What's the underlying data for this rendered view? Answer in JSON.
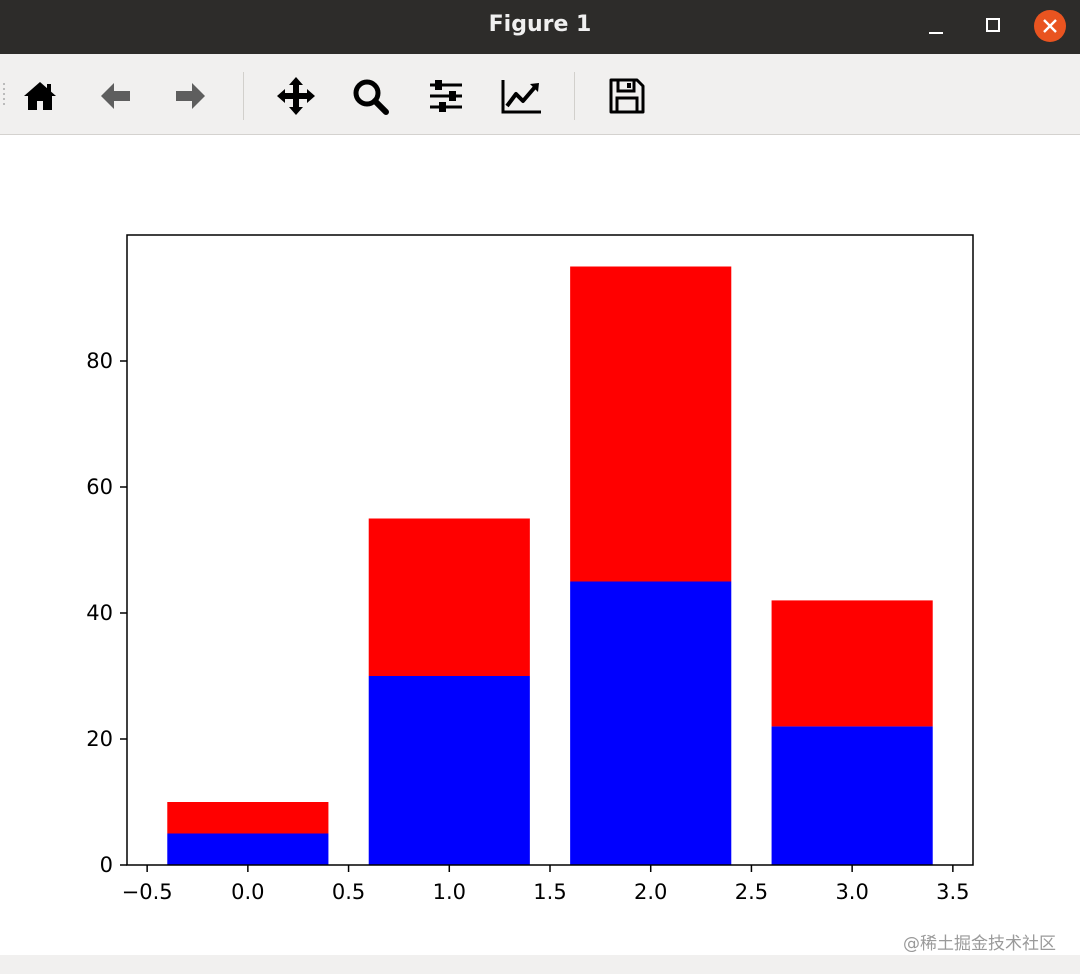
{
  "window": {
    "title": "Figure 1",
    "controls": {
      "minimize_icon": "minimize-icon",
      "maximize_icon": "maximize-icon",
      "close_icon": "close-icon"
    },
    "close_color": "#e95420"
  },
  "toolbar": {
    "tools": [
      {
        "name": "home",
        "icon": "home-icon"
      },
      {
        "name": "back",
        "icon": "arrow-left-icon"
      },
      {
        "name": "forward",
        "icon": "arrow-right-icon"
      },
      {
        "name": "pan",
        "icon": "move-icon"
      },
      {
        "name": "zoom",
        "icon": "magnifier-icon"
      },
      {
        "name": "configure-subplots",
        "icon": "sliders-icon"
      },
      {
        "name": "edit-axis",
        "icon": "line-chart-icon"
      },
      {
        "name": "save",
        "icon": "floppy-disk-icon"
      }
    ]
  },
  "chart_data": {
    "type": "bar",
    "stacked": true,
    "x": [
      0,
      1,
      2,
      3
    ],
    "bar_width": 0.8,
    "series": [
      {
        "color": "#0000ff",
        "values": [
          5,
          30,
          45,
          22
        ]
      },
      {
        "color": "#ff0000",
        "values": [
          5,
          25,
          50,
          20
        ]
      }
    ],
    "xlim": [
      -0.6,
      3.6
    ],
    "ylim": [
      0,
      100
    ],
    "xticks": [
      -0.5,
      0.0,
      0.5,
      1.0,
      1.5,
      2.0,
      2.5,
      3.0,
      3.5
    ],
    "xtick_labels": [
      "−0.5",
      "0.0",
      "0.5",
      "1.0",
      "1.5",
      "2.0",
      "2.5",
      "3.0",
      "3.5"
    ],
    "yticks": [
      0,
      20,
      40,
      60,
      80
    ],
    "ytick_labels": [
      "0",
      "20",
      "40",
      "60",
      "80"
    ],
    "grid": false,
    "legend": "none"
  },
  "watermark": "@稀土掘金技术社区"
}
